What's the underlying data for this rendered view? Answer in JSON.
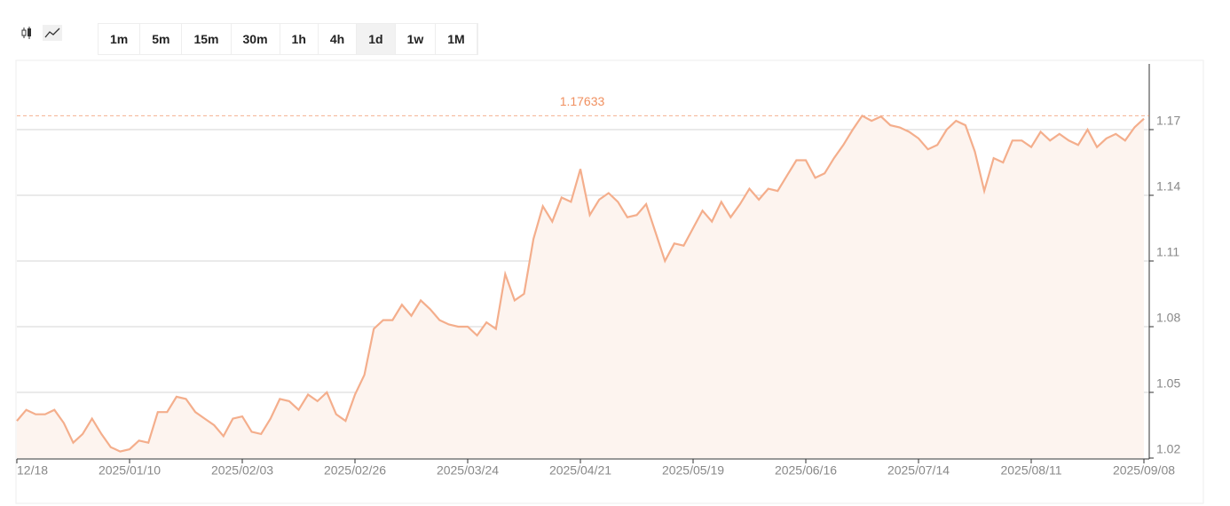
{
  "toolbar": {
    "intervals": [
      "1m",
      "5m",
      "15m",
      "30m",
      "1h",
      "4h",
      "1d",
      "1w",
      "1M"
    ],
    "active": "1d"
  },
  "chart_data": {
    "type": "line",
    "color": "#f4ae8c",
    "fill": "#fdf4ef",
    "categories": [
      "12/18",
      null,
      null,
      null,
      null,
      null,
      null,
      null,
      null,
      null,
      null,
      null,
      "2025/01/10",
      null,
      null,
      null,
      null,
      null,
      null,
      null,
      null,
      null,
      null,
      null,
      "2025/02/03",
      null,
      null,
      null,
      null,
      null,
      null,
      null,
      null,
      null,
      null,
      null,
      "2025/02/26",
      null,
      null,
      null,
      null,
      null,
      null,
      null,
      null,
      null,
      null,
      null,
      "2025/03/24",
      null,
      null,
      null,
      null,
      null,
      null,
      null,
      null,
      null,
      null,
      null,
      "2025/04/21",
      null,
      null,
      null,
      null,
      null,
      null,
      null,
      null,
      null,
      null,
      null,
      "2025/05/19",
      null,
      null,
      null,
      null,
      null,
      null,
      null,
      null,
      null,
      null,
      null,
      "2025/06/16",
      null,
      null,
      null,
      null,
      null,
      null,
      null,
      null,
      null,
      null,
      null,
      "2025/07/14",
      null,
      null,
      null,
      null,
      null,
      null,
      null,
      null,
      null,
      null,
      null,
      "2025/08/11",
      null,
      null,
      null,
      null,
      null,
      null,
      null,
      null,
      null,
      null,
      null,
      "2025/09/08"
    ],
    "values": [
      1.037,
      1.042,
      1.04,
      1.04,
      1.042,
      1.036,
      1.027,
      1.031,
      1.038,
      1.031,
      1.025,
      1.023,
      1.024,
      1.028,
      1.027,
      1.041,
      1.041,
      1.048,
      1.047,
      1.041,
      1.038,
      1.035,
      1.03,
      1.038,
      1.039,
      1.032,
      1.031,
      1.038,
      1.047,
      1.046,
      1.042,
      1.049,
      1.046,
      1.05,
      1.04,
      1.037,
      1.049,
      1.058,
      1.079,
      1.083,
      1.083,
      1.09,
      1.085,
      1.092,
      1.088,
      1.083,
      1.081,
      1.08,
      1.08,
      1.076,
      1.082,
      1.079,
      1.104,
      1.092,
      1.095,
      1.12,
      1.135,
      1.128,
      1.139,
      1.137,
      1.152,
      1.131,
      1.138,
      1.141,
      1.137,
      1.13,
      1.131,
      1.136,
      1.123,
      1.11,
      1.118,
      1.117,
      1.125,
      1.133,
      1.128,
      1.137,
      1.13,
      1.136,
      1.143,
      1.138,
      1.143,
      1.142,
      1.149,
      1.156,
      1.156,
      1.148,
      1.15,
      1.157,
      1.163,
      1.17,
      1.17633,
      1.174,
      1.176,
      1.172,
      1.171,
      1.169,
      1.166,
      1.161,
      1.163,
      1.17,
      1.174,
      1.172,
      1.16,
      1.142,
      1.157,
      1.155,
      1.165,
      1.165,
      1.162,
      1.169,
      1.165,
      1.168,
      1.165,
      1.163,
      1.17,
      1.162,
      1.166,
      1.168,
      1.165,
      1.171,
      1.175
    ],
    "ylim": [
      1.02,
      1.2
    ],
    "yticks": [
      1.02,
      1.05,
      1.08,
      1.11,
      1.14,
      1.17
    ],
    "grid": true,
    "max_line": {
      "value": 1.17633,
      "color": "#f09060"
    }
  }
}
